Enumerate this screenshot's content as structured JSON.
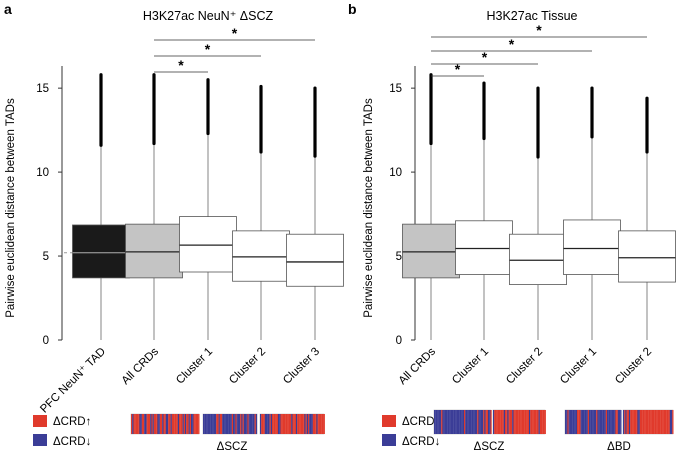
{
  "colors": {
    "black_box": "#1a1a1a",
    "grey_box": "#c4c4c4",
    "white_box": "#ffffff",
    "up": "#e03a2c",
    "down": "#3b3d97",
    "axis": "#333333",
    "dashed": "#999999"
  },
  "legend": {
    "up_label": "ΔCRD",
    "up_arrow": "↑",
    "down_label": "ΔCRD",
    "down_arrow": "↓"
  },
  "chart_data": [
    {
      "type": "box",
      "panel_letter": "a",
      "title": "H3K27ac NeuN⁺ ΔSCZ",
      "ylabel": "Pairwise euclidean distance between TADs",
      "ylim": [
        0,
        16.2
      ],
      "yticks": [
        0,
        5,
        10,
        15
      ],
      "reference_line": 5.2,
      "categories": [
        "PFC NeuN⁺ TAD",
        "All CRDs",
        "Cluster 1",
        "Cluster 2",
        "Cluster 3"
      ],
      "box_fill": [
        "black",
        "grey",
        "white",
        "white",
        "white"
      ],
      "stats": [
        {
          "min": 0,
          "q1": 3.7,
          "median": 5.2,
          "q3": 6.85,
          "whisker_high": 11.6,
          "max": 15.8
        },
        {
          "min": 0,
          "q1": 3.7,
          "median": 5.25,
          "q3": 6.9,
          "whisker_high": 11.7,
          "max": 15.8
        },
        {
          "min": 0,
          "q1": 4.05,
          "median": 5.65,
          "q3": 7.35,
          "whisker_high": 12.3,
          "max": 15.5
        },
        {
          "min": 0,
          "q1": 3.5,
          "median": 4.95,
          "q3": 6.5,
          "whisker_high": 11.2,
          "max": 15.1
        },
        {
          "min": 0,
          "q1": 3.2,
          "median": 4.65,
          "q3": 6.3,
          "whisker_high": 10.95,
          "max": 15.0
        }
      ],
      "significance": [
        {
          "from": 1,
          "to": 2,
          "y": 16.1,
          "label": "*"
        },
        {
          "from": 1,
          "to": 3,
          "y": 17.6,
          "label": "*"
        },
        {
          "from": 1,
          "to": 4,
          "y": 19.1,
          "label": "*"
        }
      ],
      "heatmap_groups": [
        {
          "label": "",
          "segments": 1
        },
        {
          "label": "ΔSCZ",
          "segments": 1
        },
        {
          "label": "",
          "segments": 1
        }
      ]
    },
    {
      "type": "box",
      "panel_letter": "b",
      "title": "H3K27ac Tissue",
      "ylabel": "Pairwise euclidean distance between TADs",
      "ylim": [
        0,
        16.2
      ],
      "yticks": [
        0,
        5,
        10,
        15
      ],
      "reference_line": 5.2,
      "categories": [
        "All CRDs",
        "Cluster 1",
        "Cluster 2",
        "Cluster 1",
        "Cluster 2"
      ],
      "box_fill": [
        "grey",
        "white",
        "white",
        "white",
        "white"
      ],
      "stats": [
        {
          "min": 0,
          "q1": 3.7,
          "median": 5.25,
          "q3": 6.9,
          "whisker_high": 11.7,
          "max": 15.8
        },
        {
          "min": 0,
          "q1": 3.9,
          "median": 5.45,
          "q3": 7.1,
          "whisker_high": 12.0,
          "max": 15.3
        },
        {
          "min": 0,
          "q1": 3.3,
          "median": 4.75,
          "q3": 6.3,
          "whisker_high": 10.9,
          "max": 15.0
        },
        {
          "min": 0,
          "q1": 3.9,
          "median": 5.45,
          "q3": 7.15,
          "whisker_high": 12.1,
          "max": 15.0
        },
        {
          "min": 0,
          "q1": 3.45,
          "median": 4.9,
          "q3": 6.5,
          "whisker_high": 11.2,
          "max": 14.4
        }
      ],
      "significance": [
        {
          "from": 0,
          "to": 1,
          "y": 16.1,
          "label": "*"
        },
        {
          "from": 0,
          "to": 2,
          "y": 17.6,
          "label": "*"
        },
        {
          "from": 0,
          "to": 3,
          "y": 19.1,
          "label": "*"
        },
        {
          "from": 0,
          "to": 4,
          "y": 20.6,
          "label": "*"
        }
      ],
      "heatmap_groups": [
        {
          "label": "ΔSCZ"
        },
        {
          "label": "ΔBD"
        }
      ]
    }
  ]
}
